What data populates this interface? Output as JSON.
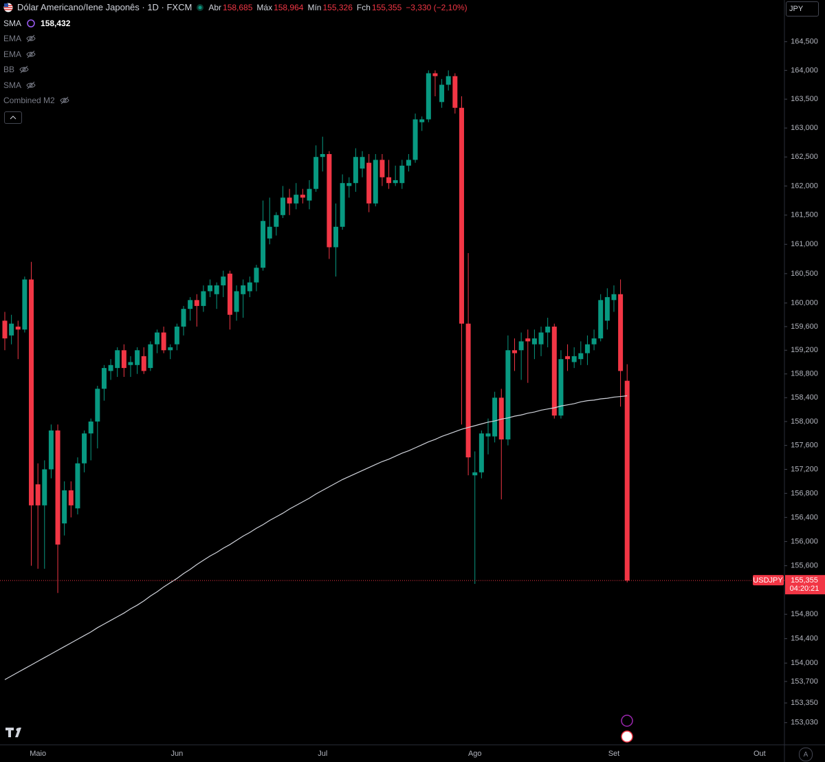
{
  "header": {
    "symbol": "Dólar Americano/Iene Japonês · 1D · FXCM",
    "open_label": "Abr",
    "open": "158,685",
    "high_label": "Máx",
    "high": "158,964",
    "low_label": "Mín",
    "low": "155,326",
    "close_label": "Fch",
    "close": "155,355",
    "change": "−3,330 (−2,10%)"
  },
  "indicators": [
    {
      "name": "SMA",
      "value": "158,432"
    },
    {
      "name": "EMA"
    },
    {
      "name": "EMA"
    },
    {
      "name": "BB"
    },
    {
      "name": "SMA"
    },
    {
      "name": "Combined M2"
    }
  ],
  "currency": "JPY",
  "price_tag": {
    "symbol": "USDJPY",
    "price": "155,355",
    "countdown": "04:20:21"
  },
  "scale_mode": "A",
  "chart_data": {
    "type": "candlestick",
    "log_scale": true,
    "grid": false,
    "up_color": "#089981",
    "down_color": "#f23645",
    "categories": [
      null,
      null,
      null,
      null,
      null,
      "Maio",
      null,
      null,
      null,
      null,
      null,
      null,
      null,
      null,
      null,
      null,
      null,
      null,
      null,
      null,
      null,
      null,
      null,
      null,
      null,
      null,
      "Jun",
      null,
      null,
      null,
      null,
      null,
      null,
      null,
      null,
      null,
      null,
      null,
      null,
      null,
      null,
      null,
      null,
      null,
      null,
      null,
      null,
      null,
      "Jul",
      null,
      null,
      null,
      null,
      null,
      null,
      null,
      null,
      null,
      null,
      null,
      null,
      null,
      null,
      null,
      null,
      null,
      null,
      null,
      null,
      null,
      null,
      "Ago",
      null,
      null,
      null,
      null,
      null,
      null,
      null,
      null,
      null,
      null,
      null,
      null,
      null,
      null,
      null,
      null,
      null,
      null,
      null,
      null,
      "Set",
      null,
      null,
      null,
      null,
      null,
      null,
      null,
      null,
      null,
      null,
      null,
      null,
      null,
      null,
      null,
      null,
      null,
      null,
      null,
      null,
      null,
      "Out",
      null,
      null,
      null
    ],
    "open": [
      159.7,
      159.45,
      159.6,
      159.55,
      160.4,
      156.95,
      156.6,
      157.2,
      157.85,
      156.3,
      156.85,
      156.55,
      157.3,
      157.8,
      158.0,
      158.55,
      158.85,
      158.9,
      159.2,
      158.95,
      158.95,
      159.1,
      158.9,
      159.3,
      159.5,
      159.2,
      159.3,
      159.6,
      159.9,
      160.05,
      159.95,
      160.2,
      160.15,
      160.3,
      160.5,
      159.85,
      160.15,
      160.2,
      160.35,
      160.6,
      161.1,
      161.3,
      161.5,
      161.8,
      161.7,
      161.85,
      161.75,
      161.95,
      162.5,
      162.55,
      160.95,
      161.3,
      162.0,
      162.05,
      162.3,
      162.4,
      161.7,
      162.45,
      162.15,
      162.05,
      162.05,
      162.35,
      162.45,
      163.1,
      163.15,
      163.95,
      163.45,
      163.75,
      163.9,
      163.35,
      159.65,
      157.1,
      157.15,
      157.75,
      157.75,
      158.4,
      157.7,
      159.2,
      159.2,
      159.4,
      159.3,
      159.3,
      159.5,
      159.6,
      158.1,
      159.1,
      159.0,
      159.05,
      159.15,
      159.3,
      159.4,
      159.7,
      160.05,
      160.15,
      158.685,
      null,
      null,
      null,
      null,
      null,
      null,
      null,
      null,
      null,
      null,
      null,
      null,
      null,
      null,
      null,
      null,
      null,
      null,
      null,
      null,
      null,
      null,
      null
    ],
    "high": [
      159.85,
      159.8,
      159.7,
      160.45,
      160.7,
      157.3,
      157.35,
      157.95,
      157.95,
      157.0,
      157.0,
      157.4,
      157.85,
      158.05,
      158.6,
      158.95,
      159.05,
      159.25,
      159.3,
      159.1,
      159.25,
      159.25,
      159.35,
      159.55,
      159.6,
      159.3,
      159.65,
      159.95,
      160.1,
      160.15,
      160.3,
      160.4,
      160.35,
      160.55,
      160.55,
      160.3,
      160.4,
      160.45,
      160.65,
      161.75,
      161.8,
      161.55,
      162.0,
      161.95,
      162.05,
      161.95,
      162.1,
      162.7,
      162.85,
      162.6,
      161.7,
      162.2,
      162.15,
      162.65,
      162.6,
      162.55,
      162.55,
      162.55,
      162.45,
      162.35,
      162.45,
      162.55,
      163.25,
      163.2,
      164.0,
      164.0,
      163.85,
      164.0,
      163.95,
      163.55,
      160.85,
      157.5,
      157.85,
      158.05,
      158.5,
      158.55,
      159.45,
      159.4,
      159.5,
      159.55,
      159.55,
      159.6,
      159.75,
      159.65,
      159.2,
      159.3,
      159.25,
      159.35,
      159.45,
      159.55,
      160.15,
      160.25,
      160.3,
      160.4,
      158.964,
      null,
      null,
      null,
      null,
      null,
      null,
      null,
      null,
      null,
      null,
      null,
      null,
      null,
      null,
      null,
      null,
      null,
      null,
      null,
      null,
      null,
      null,
      null
    ],
    "low": [
      159.2,
      159.3,
      159.05,
      159.5,
      155.6,
      155.55,
      155.55,
      157.05,
      155.15,
      156.1,
      156.4,
      156.45,
      157.15,
      157.35,
      157.55,
      158.35,
      158.7,
      158.75,
      158.75,
      158.75,
      158.8,
      158.8,
      158.85,
      159.15,
      159.15,
      159.05,
      159.2,
      159.45,
      159.7,
      159.6,
      159.85,
      160.1,
      159.9,
      160.1,
      159.55,
      159.7,
      159.75,
      160.1,
      160.2,
      160.55,
      161.0,
      161.15,
      161.45,
      161.5,
      161.6,
      161.7,
      161.6,
      161.9,
      162.25,
      160.75,
      160.45,
      161.25,
      161.8,
      161.9,
      162.15,
      161.55,
      161.65,
      162.0,
      161.95,
      162.0,
      161.95,
      162.25,
      162.4,
      162.95,
      163.1,
      163.55,
      163.35,
      163.65,
      163.25,
      157.95,
      157.1,
      155.3,
      157.05,
      157.45,
      157.65,
      156.7,
      157.6,
      158.85,
      158.7,
      158.65,
      159.05,
      159.1,
      159.25,
      158.05,
      158.05,
      158.85,
      158.9,
      158.95,
      158.95,
      159.2,
      159.35,
      159.55,
      159.85,
      158.25,
      155.326,
      null,
      null,
      null,
      null,
      null,
      null,
      null,
      null,
      null,
      null,
      null,
      null,
      null,
      null,
      null,
      null,
      null,
      null,
      null,
      null,
      null,
      null,
      null
    ],
    "close": [
      159.4,
      159.65,
      159.55,
      160.4,
      156.6,
      156.6,
      157.2,
      157.85,
      155.95,
      156.85,
      156.6,
      157.3,
      157.8,
      158.0,
      158.55,
      158.9,
      158.95,
      159.2,
      158.9,
      159.0,
      159.2,
      158.85,
      159.3,
      159.5,
      159.2,
      159.25,
      159.6,
      159.9,
      160.05,
      159.95,
      160.2,
      160.3,
      160.3,
      160.45,
      159.8,
      160.2,
      160.3,
      160.35,
      160.6,
      161.4,
      161.3,
      161.5,
      161.8,
      161.7,
      161.85,
      161.8,
      161.95,
      162.5,
      162.55,
      160.95,
      161.3,
      162.05,
      162.05,
      162.5,
      162.5,
      161.7,
      162.45,
      162.15,
      162.05,
      162.1,
      162.35,
      162.45,
      163.15,
      163.15,
      163.95,
      163.9,
      163.75,
      163.9,
      163.35,
      159.65,
      157.4,
      157.15,
      157.8,
      157.8,
      158.4,
      157.7,
      159.2,
      159.15,
      159.35,
      159.35,
      159.4,
      159.5,
      159.6,
      158.1,
      159.05,
      159.05,
      159.1,
      159.15,
      159.3,
      159.4,
      160.05,
      160.1,
      160.15,
      158.85,
      155.355,
      null,
      null,
      null,
      null,
      null,
      null,
      null,
      null,
      null,
      null,
      null,
      null,
      null,
      null,
      null,
      null,
      null,
      null,
      null,
      null,
      null,
      null,
      null
    ],
    "overlay": {
      "color": "#d1d4dc",
      "values": [
        153.73,
        153.79,
        153.85,
        153.91,
        153.97,
        154.03,
        154.09,
        154.15,
        154.21,
        154.27,
        154.33,
        154.39,
        154.45,
        154.51,
        154.58,
        154.64,
        154.7,
        154.76,
        154.82,
        154.89,
        154.95,
        155.02,
        155.1,
        155.17,
        155.25,
        155.32,
        155.39,
        155.47,
        155.54,
        155.62,
        155.69,
        155.76,
        155.82,
        155.89,
        155.95,
        156.02,
        156.09,
        156.15,
        156.22,
        156.28,
        156.35,
        156.41,
        156.47,
        156.54,
        156.6,
        156.66,
        156.72,
        156.79,
        156.85,
        156.91,
        156.97,
        157.03,
        157.08,
        157.13,
        157.18,
        157.23,
        157.28,
        157.33,
        157.37,
        157.42,
        157.47,
        157.51,
        157.56,
        157.61,
        157.66,
        157.7,
        157.75,
        157.79,
        157.83,
        157.87,
        157.9,
        157.93,
        157.96,
        157.99,
        158.01,
        158.04,
        158.06,
        158.09,
        158.11,
        158.14,
        158.16,
        158.19,
        158.21,
        158.23,
        158.26,
        158.28,
        158.3,
        158.33,
        158.35,
        158.36,
        158.38,
        158.39,
        158.41,
        158.42,
        158.432,
        null,
        null,
        null,
        null,
        null,
        null,
        null,
        null,
        null,
        null,
        null,
        null,
        null,
        null,
        null,
        null,
        null,
        null,
        null,
        null,
        null,
        null,
        null
      ]
    },
    "ylim": [
      152.67,
      165.23
    ],
    "yticks": [
      {
        "value": 164.5,
        "label": "164,500"
      },
      {
        "value": 164.0,
        "label": "164,000"
      },
      {
        "value": 163.5,
        "label": "163,500"
      },
      {
        "value": 163.0,
        "label": "163,000"
      },
      {
        "value": 162.5,
        "label": "162,500"
      },
      {
        "value": 162.0,
        "label": "162,000"
      },
      {
        "value": 161.5,
        "label": "161,500"
      },
      {
        "value": 161.0,
        "label": "161,000"
      },
      {
        "value": 160.5,
        "label": "160,500"
      },
      {
        "value": 160.0,
        "label": "160,000"
      },
      {
        "value": 159.6,
        "label": "159,600"
      },
      {
        "value": 159.2,
        "label": "159,200"
      },
      {
        "value": 158.8,
        "label": "158,800"
      },
      {
        "value": 158.4,
        "label": "158,400"
      },
      {
        "value": 158.0,
        "label": "158,000"
      },
      {
        "value": 157.6,
        "label": "157,600"
      },
      {
        "value": 157.2,
        "label": "157,200"
      },
      {
        "value": 156.8,
        "label": "156,800"
      },
      {
        "value": 156.4,
        "label": "156,400"
      },
      {
        "value": 156.0,
        "label": "156,000"
      },
      {
        "value": 155.6,
        "label": "155,600"
      },
      {
        "value": 154.8,
        "label": "154,800"
      },
      {
        "value": 154.4,
        "label": "154,400"
      },
      {
        "value": 154.0,
        "label": "154,000"
      },
      {
        "value": 153.7,
        "label": "153,700"
      },
      {
        "value": 153.35,
        "label": "153,350"
      },
      {
        "value": 153.03,
        "label": "153,030"
      }
    ]
  }
}
